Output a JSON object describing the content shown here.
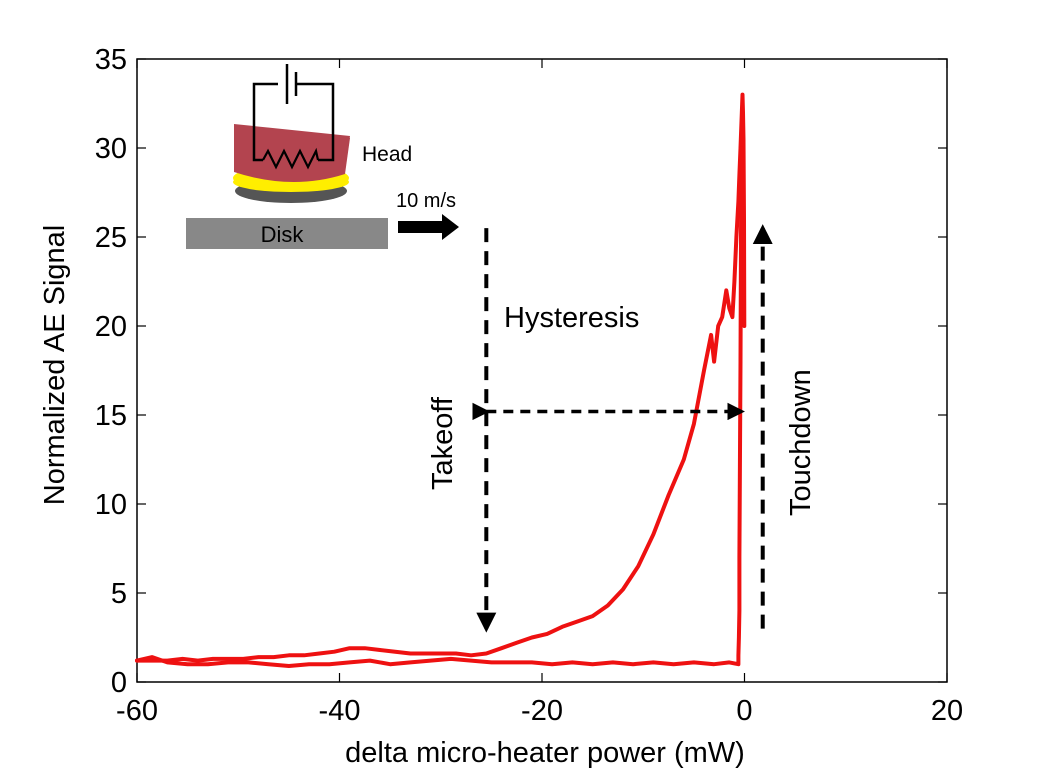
{
  "chart_data": {
    "type": "line",
    "title": "",
    "xlabel": "delta micro-heater power (mW)",
    "ylabel": "Normalized AE Signal",
    "xlim": [
      -60,
      20
    ],
    "ylim": [
      0,
      35
    ],
    "grid": false,
    "x_ticks": [
      -60,
      -40,
      -20,
      0,
      20
    ],
    "y_ticks": [
      0,
      5,
      10,
      15,
      20,
      25,
      30,
      35
    ],
    "colors": {
      "series": "#ee1111",
      "axis": "#000000"
    },
    "series": [
      {
        "color": "#ee1111",
        "x": [
          -60,
          -58.5,
          -57,
          -55.5,
          -54,
          -52.5,
          -51,
          -49.5,
          -48,
          -46.5,
          -45,
          -43.5,
          -42,
          -40.5,
          -39,
          -37.5,
          -36,
          -34.5,
          -33,
          -31.5,
          -30,
          -28.5,
          -27,
          -25.5,
          -24,
          -22.5,
          -21,
          -19.5,
          -18,
          -16.5,
          -15,
          -13.5,
          -12,
          -10.5,
          -9,
          -7.5,
          -6,
          -5,
          -4,
          -3.3,
          -3,
          -2.6,
          -2.2,
          -1.8,
          -1.5,
          -1.2,
          -1.0,
          -0.8,
          -0.6,
          -0.5,
          -0.4,
          -0.3,
          -0.2,
          -0.15,
          -0.1,
          -0.05,
          -0.02
        ],
        "y": [
          1.2,
          1.2,
          1.2,
          1.3,
          1.2,
          1.3,
          1.3,
          1.3,
          1.4,
          1.4,
          1.5,
          1.5,
          1.6,
          1.7,
          1.9,
          1.9,
          1.8,
          1.7,
          1.6,
          1.6,
          1.6,
          1.6,
          1.5,
          1.6,
          1.9,
          2.2,
          2.5,
          2.7,
          3.1,
          3.4,
          3.7,
          4.3,
          5.2,
          6.5,
          8.3,
          10.5,
          12.5,
          14.5,
          17.5,
          19.5,
          18.0,
          20.0,
          20.5,
          22.0,
          21.0,
          20.5,
          22.5,
          25.0,
          27.0,
          28.5,
          30.0,
          31.5,
          33.0,
          32.0,
          30.5,
          26.0,
          20.0
        ]
      },
      {
        "color": "#ee1111",
        "x": [
          -0.3,
          -0.35,
          -0.4,
          -0.45,
          -0.5,
          -0.5,
          -0.55,
          -0.6,
          -0.6,
          -1.5,
          -3,
          -5,
          -7,
          -9,
          -11,
          -13,
          -15,
          -17,
          -19,
          -21,
          -23,
          -25,
          -27,
          -29,
          -31,
          -33,
          -35,
          -37,
          -39,
          -41,
          -43,
          -45,
          -47,
          -49,
          -51,
          -53,
          -55,
          -57,
          -58.5,
          -60
        ],
        "y": [
          30.0,
          25.0,
          18.0,
          12.0,
          7.0,
          4.0,
          2.5,
          1.5,
          1.0,
          1.1,
          1.0,
          1.1,
          1.0,
          1.1,
          1.0,
          1.1,
          1.0,
          1.1,
          1.0,
          1.1,
          1.1,
          1.1,
          1.2,
          1.3,
          1.2,
          1.1,
          1.0,
          1.2,
          1.1,
          1.0,
          1.0,
          0.9,
          1.0,
          1.1,
          1.1,
          1.0,
          1.0,
          1.1,
          1.4,
          1.2
        ]
      }
    ],
    "annotations": {
      "inset_head": "Head",
      "inset_disk": "Disk",
      "inset_speed": "10 m/s",
      "hysteresis": "Hysteresis",
      "takeoff": "Takeoff",
      "touchdown": "Touchdown"
    },
    "markers": {
      "takeoff_arrow": {
        "x": -25.5,
        "y_from": 25.5,
        "y_to": 3.0
      },
      "touchdown_arrow": {
        "x": 1.8,
        "y_from": 3.0,
        "y_to": 25.5
      },
      "hysteresis_arrow": {
        "x_from": -25.5,
        "x_to": -0.3,
        "y": 15.2
      }
    }
  }
}
